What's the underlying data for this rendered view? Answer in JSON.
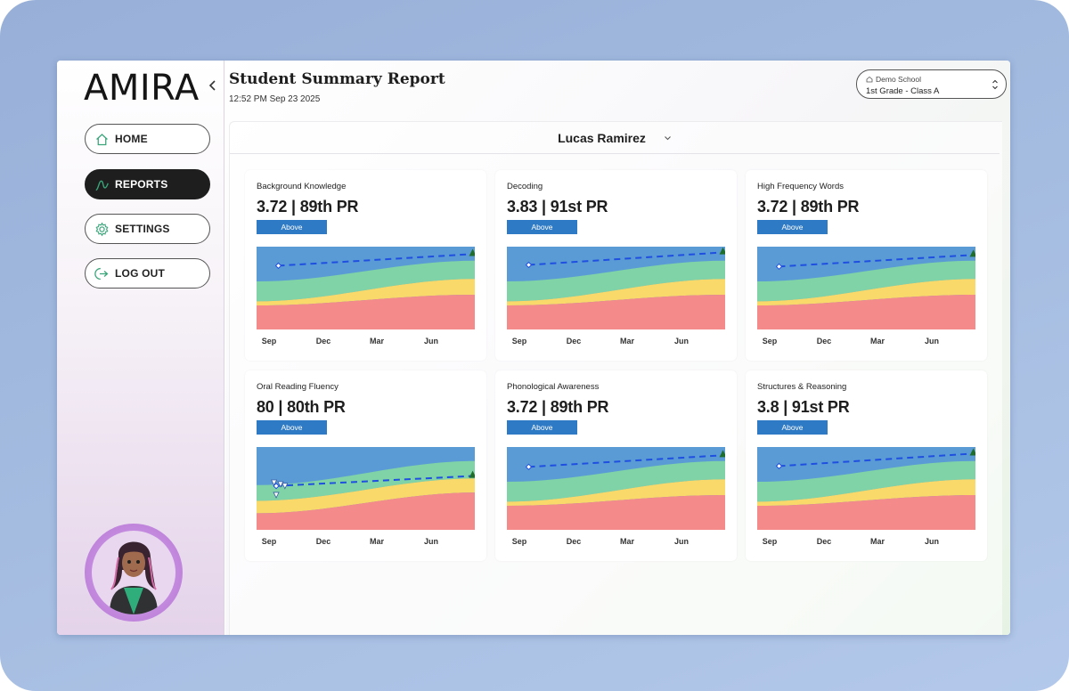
{
  "app": {
    "logo": "AMIRA"
  },
  "nav": {
    "items": [
      {
        "label": "HOME",
        "icon": "home-icon",
        "active": false
      },
      {
        "label": "REPORTS",
        "icon": "reports-icon",
        "active": true
      },
      {
        "label": "SETTINGS",
        "icon": "gear-icon",
        "active": false
      },
      {
        "label": "LOG OUT",
        "icon": "logout-icon",
        "active": false
      }
    ]
  },
  "header": {
    "title": "Student Summary Report",
    "timestamp": "12:52 PM Sep 23 2025"
  },
  "school_select": {
    "school": "Demo School",
    "class": "1st Grade - Class A"
  },
  "student": {
    "name": "Lucas Ramirez"
  },
  "colors": {
    "above": "#5b9bd5",
    "at": "#7fd3a6",
    "approaching": "#f9d96a",
    "below": "#f48a8a",
    "trend": "#1f4fe0",
    "badge": "#2f7ac4",
    "goal": "#1f6e2b"
  },
  "months": [
    "Sep",
    "Dec",
    "Mar",
    "Jun"
  ],
  "cards": [
    {
      "title": "Background Knowledge",
      "score": "3.72",
      "pr": "89th PR",
      "badge": "Above",
      "bands": {
        "green_top": [
          0.42,
          0.17
        ],
        "yellow_top": [
          0.66,
          0.39
        ],
        "red_top": [
          0.71,
          0.58
        ]
      },
      "trend": {
        "start": [
          0.1,
          0.77
        ],
        "end": [
          0.99,
          0.92
        ]
      },
      "early_points": []
    },
    {
      "title": "Decoding",
      "score": "3.83",
      "pr": "91st PR",
      "badge": "Above",
      "bands": {
        "green_top": [
          0.42,
          0.17
        ],
        "yellow_top": [
          0.66,
          0.39
        ],
        "red_top": [
          0.71,
          0.58
        ]
      },
      "trend": {
        "start": [
          0.1,
          0.78
        ],
        "end": [
          0.99,
          0.94
        ]
      },
      "early_points": []
    },
    {
      "title": "High Frequency Words",
      "score": "3.72",
      "pr": "89th PR",
      "badge": "Above",
      "bands": {
        "green_top": [
          0.42,
          0.17
        ],
        "yellow_top": [
          0.66,
          0.39
        ],
        "red_top": [
          0.71,
          0.58
        ]
      },
      "trend": {
        "start": [
          0.1,
          0.76
        ],
        "end": [
          0.99,
          0.91
        ]
      },
      "early_points": []
    },
    {
      "title": "Oral Reading Fluency",
      "score": "80",
      "pr": "80th PR",
      "badge": "Above",
      "bands": {
        "green_top": [
          0.46,
          0.17
        ],
        "yellow_top": [
          0.65,
          0.38
        ],
        "red_top": [
          0.8,
          0.55
        ]
      },
      "trend": {
        "start": [
          0.09,
          0.53
        ],
        "end": [
          0.99,
          0.66
        ]
      },
      "early_points": [
        [
          0.08,
          0.57
        ],
        [
          0.11,
          0.55
        ],
        [
          0.13,
          0.53
        ],
        [
          0.09,
          0.42
        ]
      ]
    },
    {
      "title": "Phonological Awareness",
      "score": "3.72",
      "pr": "89th PR",
      "badge": "Above",
      "bands": {
        "green_top": [
          0.42,
          0.17
        ],
        "yellow_top": [
          0.66,
          0.39
        ],
        "red_top": [
          0.71,
          0.58
        ]
      },
      "trend": {
        "start": [
          0.1,
          0.76
        ],
        "end": [
          0.99,
          0.91
        ]
      },
      "early_points": []
    },
    {
      "title": "Structures & Reasoning",
      "score": "3.8",
      "pr": "91st PR",
      "badge": "Above",
      "bands": {
        "green_top": [
          0.42,
          0.17
        ],
        "yellow_top": [
          0.66,
          0.39
        ],
        "red_top": [
          0.71,
          0.58
        ]
      },
      "trend": {
        "start": [
          0.1,
          0.77
        ],
        "end": [
          0.99,
          0.93
        ]
      },
      "early_points": []
    }
  ]
}
